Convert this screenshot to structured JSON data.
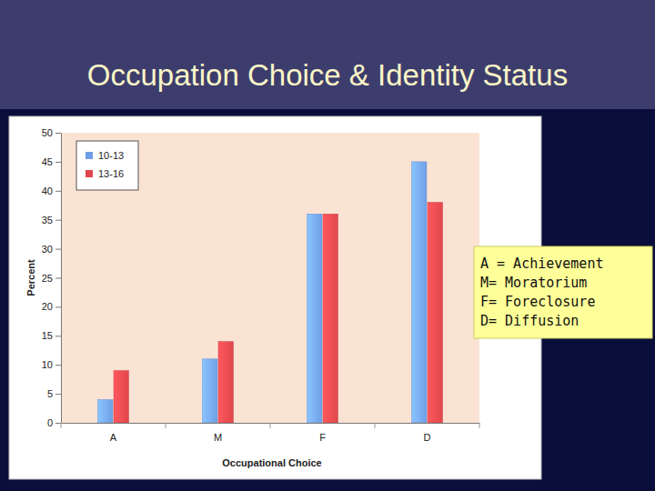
{
  "chart_data": {
    "type": "bar",
    "title": "Occupation Choice & Identity Status",
    "x_label": "Occupational Choice",
    "y_label": "Percent",
    "categories": [
      "A",
      "M",
      "F",
      "D"
    ],
    "series": [
      {
        "name": "10-13",
        "color": "#6f9fe6",
        "values": [
          4,
          11,
          36,
          45
        ]
      },
      {
        "name": "13-16",
        "color": "#e0474c",
        "values": [
          9,
          14,
          36,
          38
        ]
      }
    ],
    "ylim": [
      0,
      50
    ],
    "yticks": [
      0,
      5,
      10,
      15,
      20,
      25,
      30,
      35,
      40,
      45,
      50
    ],
    "grid": false,
    "legend": "upper left",
    "annotations": [
      "A = Achievement",
      "M= Moratorium",
      "F= Foreclosure",
      "D= Diffusion"
    ]
  }
}
